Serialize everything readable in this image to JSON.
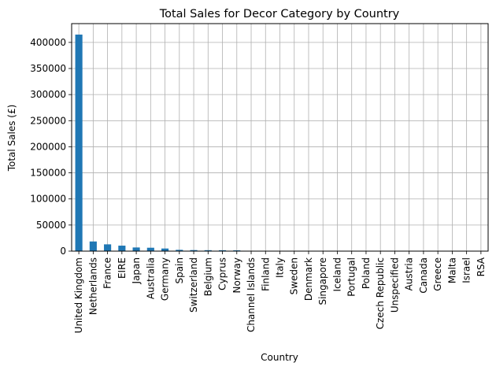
{
  "chart_data": {
    "type": "bar",
    "title": "Total Sales for Decor Category by Country",
    "xlabel": "Country",
    "ylabel": "Total Sales (£)",
    "categories": [
      "United Kingdom",
      "Netherlands",
      "France",
      "EIRE",
      "Japan",
      "Australia",
      "Germany",
      "Spain",
      "Switzerland",
      "Belgium",
      "Cyprus",
      "Norway",
      "Channel Islands",
      "Finland",
      "Italy",
      "Sweden",
      "Denmark",
      "Singapore",
      "Iceland",
      "Portugal",
      "Poland",
      "Czech Republic",
      "Unspecified",
      "Austria",
      "Canada",
      "Greece",
      "Malta",
      "Israel",
      "RSA"
    ],
    "values": [
      415000,
      18500,
      13000,
      10500,
      7000,
      6500,
      5000,
      2500,
      2000,
      1800,
      1700,
      1500,
      500,
      400,
      350,
      300,
      250,
      200,
      150,
      120,
      100,
      90,
      80,
      60,
      50,
      40,
      30,
      20,
      10
    ],
    "ylim": [
      0,
      436000
    ],
    "yticks": [
      0,
      50000,
      100000,
      150000,
      200000,
      250000,
      300000,
      350000,
      400000
    ],
    "grid": true,
    "legend": "none",
    "bar_color": "#1f77b4"
  }
}
